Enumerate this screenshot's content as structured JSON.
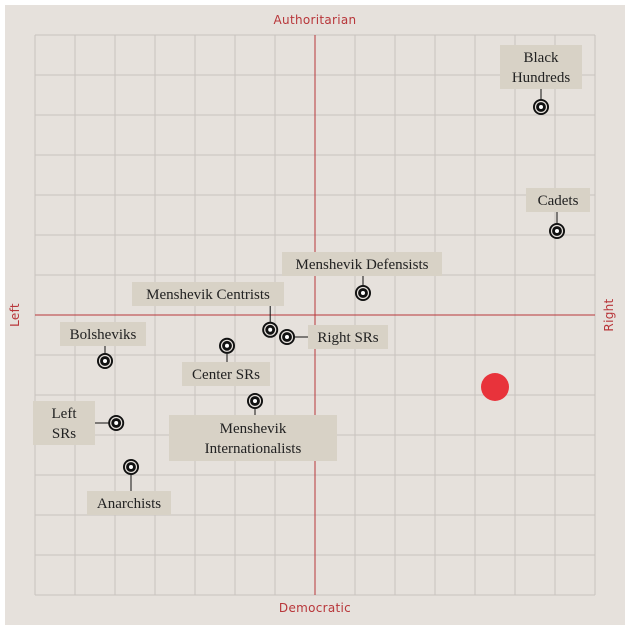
{
  "chart_data": {
    "type": "scatter",
    "axes": {
      "top": "Authoritarian",
      "bottom": "Democratic",
      "left": "Left",
      "right": "Right"
    },
    "xlim": [
      -7,
      7
    ],
    "ylim": [
      -7,
      7
    ],
    "grid": true,
    "grid_divisions": 14,
    "points": [
      {
        "label": [
          "Black",
          "Hundreds"
        ],
        "x": 5.65,
        "y": 5.2
      },
      {
        "label": [
          "Cadets"
        ],
        "x": 6.05,
        "y": 2.1
      },
      {
        "label": [
          "Menshevik Defensists"
        ],
        "x": 1.2,
        "y": 0.55
      },
      {
        "label": [
          "Menshevik Centrists"
        ],
        "x": -1.12,
        "y": -0.37
      },
      {
        "label": [
          "Right SRs"
        ],
        "x": -0.7,
        "y": -0.55
      },
      {
        "label": [
          "Bolsheviks"
        ],
        "x": -5.25,
        "y": -1.15
      },
      {
        "label": [
          "Center SRs"
        ],
        "x": -2.2,
        "y": -0.77
      },
      {
        "label": [
          "Menshevik",
          "Internationalists"
        ],
        "x": -1.5,
        "y": -2.15
      },
      {
        "label": [
          "Left",
          "SRs"
        ],
        "x": -4.97,
        "y": -2.7
      },
      {
        "label": [
          "Anarchists"
        ],
        "x": -4.6,
        "y": -3.8
      }
    ],
    "marker": {
      "x": 4.5,
      "y": -1.8,
      "color": "#e8333b"
    },
    "colors": {
      "background": "#e6e1dc",
      "grid": "#c8c3be",
      "axis": "#b8363a",
      "label_box": "#d8d2c6",
      "point": "#111111"
    }
  }
}
